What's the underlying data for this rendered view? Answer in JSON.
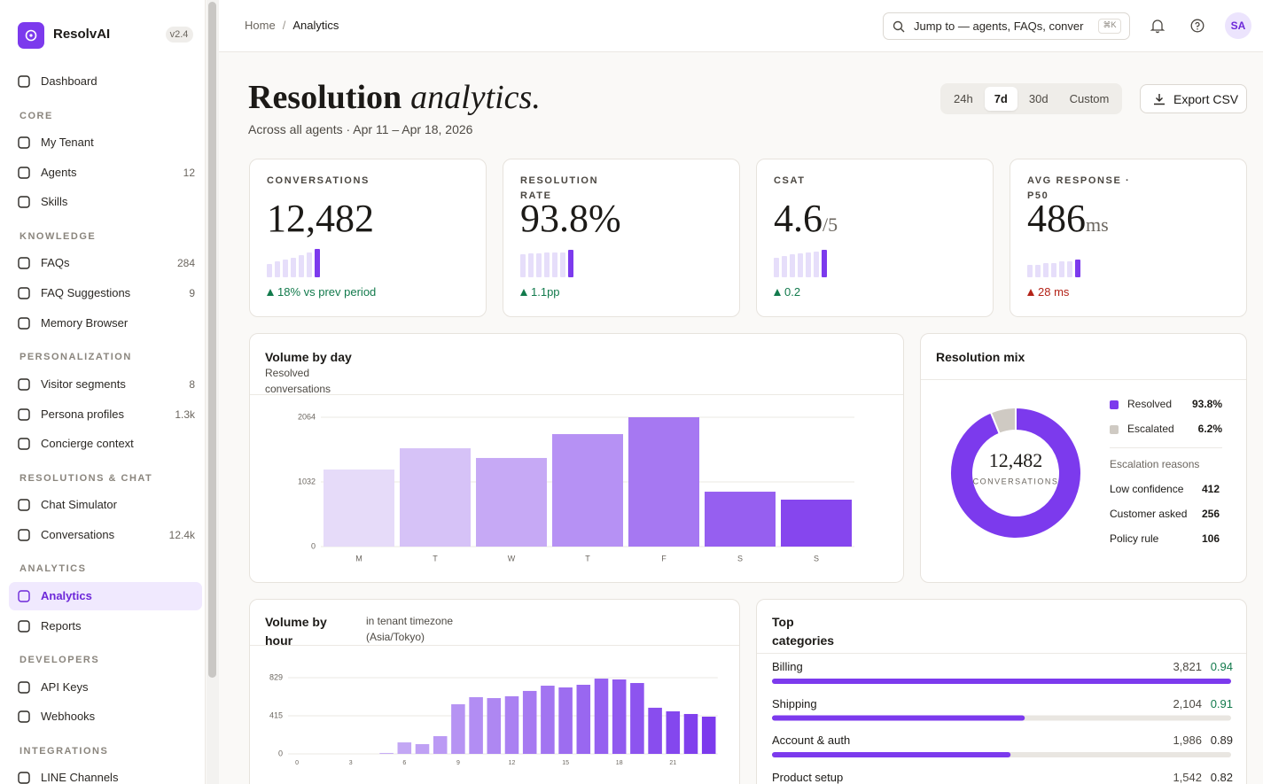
{
  "sidebar": {
    "brand": "ResolvAI",
    "version": "v2.4",
    "top_items": [
      {
        "label": "Dashboard"
      }
    ],
    "sections": [
      {
        "title": "CORE",
        "items": [
          {
            "label": "My Tenant"
          },
          {
            "label": "Agents",
            "count": 12
          },
          {
            "label": "Skills"
          }
        ]
      },
      {
        "title": "KNOWLEDGE",
        "items": [
          {
            "label": "FAQs",
            "count": 284
          },
          {
            "label": "FAQ Suggestions",
            "count": 9
          },
          {
            "label": "Memory Browser"
          }
        ]
      },
      {
        "title": "PERSONALIZATION",
        "items": [
          {
            "label": "Visitor segments",
            "count": 8
          },
          {
            "label": "Persona profiles",
            "count": "1.3k"
          },
          {
            "label": "Concierge context"
          }
        ]
      },
      {
        "title": "RESOLUTIONS & CHAT",
        "items": [
          {
            "label": "Chat Simulator"
          },
          {
            "label": "Conversations",
            "count": "12.4k"
          }
        ]
      },
      {
        "title": "ANALYTICS",
        "items": [
          {
            "label": "Analytics",
            "active": true
          },
          {
            "label": "Reports"
          }
        ]
      },
      {
        "title": "DEVELOPERS",
        "items": [
          {
            "label": "API Keys"
          },
          {
            "label": "Webhooks"
          }
        ]
      },
      {
        "title": "INTEGRATIONS",
        "items": [
          {
            "label": "LINE Channels"
          }
        ]
      }
    ]
  },
  "topbar": {
    "breadcrumb": [
      "Home",
      "Analytics"
    ],
    "separator": "/",
    "search_placeholder": "Jump to — agents, FAQs, conver",
    "shortcut": "⌘K",
    "avatar": "SA"
  },
  "header": {
    "title": "Resolution",
    "title_emphasis": "analytics.",
    "subtitle": "Across all agents · Apr 11 – Apr 18, 2026",
    "ranges": [
      {
        "label": "24h"
      },
      {
        "label": "7d",
        "active": true
      },
      {
        "label": "30d"
      },
      {
        "label": "Custom"
      }
    ],
    "export": "Export CSV"
  },
  "kpis": [
    {
      "label": "CONVERSATIONS",
      "value": "12,482",
      "spark": [
        15,
        18,
        20,
        22,
        25,
        28,
        32
      ],
      "delta": "18% vs prev period",
      "delta_color": "#127a4c"
    },
    {
      "label": "RESOLUTION RATE",
      "value": "93.8%",
      "spark": [
        26,
        27,
        27,
        28,
        28,
        28,
        31
      ],
      "delta": "1.1pp",
      "delta_color": "#127a4c"
    },
    {
      "label": "CSAT",
      "value": "4.6",
      "unit": "/5",
      "spark": [
        22,
        24,
        26,
        27,
        28,
        29,
        31
      ],
      "delta": "0.2",
      "delta_color": "#127a4c"
    },
    {
      "label": "AVG RESPONSE · P50",
      "value": "486",
      "unit": "ms",
      "spark": [
        14,
        14,
        16,
        16,
        18,
        18,
        20
      ],
      "delta": "28 ms",
      "delta_color": "#b42318"
    }
  ],
  "spark_color": "#e6defa",
  "spark_highlight": "#7c3aed",
  "volume_by_day": {
    "type": "bar",
    "title": "Volume by day",
    "subtitle": "Resolved conversations",
    "categories": [
      "M",
      "T",
      "W",
      "T",
      "F",
      "S",
      "S"
    ],
    "values": [
      1230,
      1569,
      1414,
      1795,
      2064,
      876,
      749
    ],
    "color_range": [
      "#e6dbf9",
      "#8646ee"
    ],
    "ylim": [
      0,
      2064
    ],
    "yticks": [
      0,
      1032,
      2064
    ],
    "grid": true
  },
  "resolution_mix": {
    "type": "donut",
    "title": "Resolution mix",
    "categories": [
      "Resolved",
      "Escalated"
    ],
    "values": [
      93.8,
      6.2
    ],
    "value_labels": [
      "93.8%",
      "6.2%"
    ],
    "colors": [
      "#7c3aed",
      "#cfcac3"
    ],
    "center_value": "12,482",
    "center_label": "CONVERSATIONS",
    "reasons_title": "Escalation reasons",
    "reasons": [
      {
        "label": "Low confidence",
        "value": 412
      },
      {
        "label": "Customer asked",
        "value": 256
      },
      {
        "label": "Policy rule",
        "value": 106
      }
    ]
  },
  "volume_by_hour": {
    "type": "bar",
    "title": "Volume by hour",
    "note": "in tenant timezone (Asia/Tokyo)",
    "categories": [
      "0",
      null,
      null,
      "3",
      null,
      null,
      "6",
      null,
      null,
      "9",
      null,
      null,
      "12",
      null,
      null,
      "15",
      null,
      null,
      "18",
      null,
      null,
      "21",
      null,
      null
    ],
    "values": [
      0,
      0,
      0,
      0,
      0,
      10,
      125,
      106,
      193,
      540,
      617,
      607,
      627,
      685,
      742,
      723,
      752,
      819,
      810,
      771,
      502,
      463,
      434,
      405
    ],
    "color_range": [
      "#dccdf7",
      "#7c3aed"
    ],
    "ylim": [
      0,
      829
    ],
    "yticks": [
      0,
      415,
      829
    ],
    "grid": true
  },
  "top_categories": {
    "type": "bar",
    "title": "Top categories",
    "bar_color": "#7c3aed",
    "track_color": "#e9e6e1",
    "rows": [
      {
        "name": "Billing",
        "count": 3821,
        "count_label": "3,821",
        "score": 0.94,
        "score_color": "#127a4c"
      },
      {
        "name": "Shipping",
        "count": 2104,
        "count_label": "2,104",
        "score": 0.91,
        "score_color": "#127a4c"
      },
      {
        "name": "Account & auth",
        "count": 1986,
        "count_label": "1,986",
        "score": 0.89,
        "score_color": "#2b2824"
      },
      {
        "name": "Product setup",
        "count": 1542,
        "count_label": "1,542",
        "score": 0.82,
        "score_color": "#2b2824"
      }
    ]
  }
}
